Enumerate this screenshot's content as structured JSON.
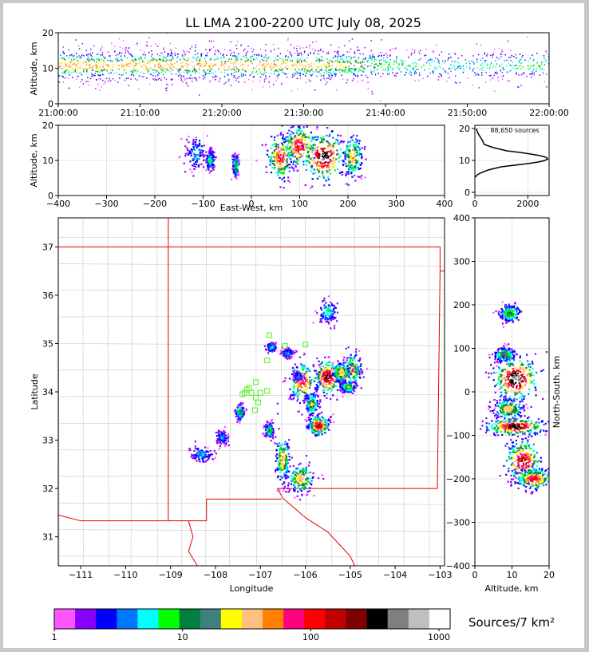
{
  "title": "LL LMA 2100-2200 UTC July 08, 2025",
  "colorbar": {
    "label": "Sources/7 km²",
    "tick_labels": [
      "1",
      "10",
      "100",
      "1000"
    ],
    "colors": [
      "#ff55ff",
      "#8800ff",
      "#0000ff",
      "#0077ff",
      "#00ffff",
      "#00ff00",
      "#007f3f",
      "#3f7f7f",
      "#ffff00",
      "#ffbf7f",
      "#ff7f00",
      "#ff007f",
      "#ff0000",
      "#bf0000",
      "#7f0000",
      "#000000",
      "#7f7f7f",
      "#bfbfbf",
      "#ffffff"
    ]
  },
  "chart_data": [
    {
      "id": "time-altitude",
      "type": "heatmap",
      "xlabel": "",
      "ylabel": "Altitude, km",
      "x_tick_labels": [
        "21:00:00",
        "21:10:00",
        "21:20:00",
        "21:30:00",
        "21:40:00",
        "21:50:00",
        "22:00:00"
      ],
      "xlim": [
        0,
        60
      ],
      "ylim": [
        0,
        20
      ],
      "y_ticks": [
        0,
        10,
        20
      ],
      "core_altitude_km": [
        8,
        14
      ],
      "activity_by_time": [
        [
          0,
          1.0
        ],
        [
          10,
          1.0
        ],
        [
          20,
          1.0
        ],
        [
          30,
          0.95
        ],
        [
          36,
          0.8
        ],
        [
          40,
          0.55
        ],
        [
          45,
          0.45
        ],
        [
          50,
          0.4
        ],
        [
          55,
          0.45
        ],
        [
          60,
          0.55
        ]
      ]
    },
    {
      "id": "eastwest-altitude",
      "type": "heatmap",
      "xlabel": "East-West, km",
      "ylabel": "Altitude, km",
      "xlim": [
        -400,
        400
      ],
      "ylim": [
        0,
        20
      ],
      "x_ticks": [
        -400,
        -300,
        -200,
        -100,
        0,
        100,
        200,
        300,
        400
      ],
      "y_ticks": [
        0,
        10,
        20
      ],
      "clusters": [
        {
          "x": -115,
          "z": 12,
          "sx": 10,
          "sz": 2.5,
          "level": 3
        },
        {
          "x": -85,
          "z": 10,
          "sx": 5,
          "sz": 1.5,
          "level": 4
        },
        {
          "x": -32,
          "z": 8.5,
          "sx": 3,
          "sz": 1.5,
          "level": 7
        },
        {
          "x": 60,
          "z": 11,
          "sx": 14,
          "sz": 3.5,
          "level": 11
        },
        {
          "x": 100,
          "z": 14,
          "sx": 18,
          "sz": 3.0,
          "level": 12
        },
        {
          "x": 150,
          "z": 11,
          "sx": 22,
          "sz": 3.5,
          "level": 15
        },
        {
          "x": 210,
          "z": 11,
          "sx": 10,
          "sz": 3.0,
          "level": 9
        }
      ]
    },
    {
      "id": "altitude-histogram",
      "type": "line",
      "annotation": "88,650 sources",
      "xlim": [
        0,
        2800
      ],
      "ylim": [
        -1,
        21
      ],
      "x_ticks": [
        0,
        2000
      ],
      "y_ticks": [
        0,
        10,
        20
      ],
      "altitude_km": [
        4.7,
        5.5,
        6,
        7,
        8,
        8.5,
        9,
        9.5,
        10,
        10.5,
        11,
        11.5,
        12,
        12.5,
        13,
        14,
        15,
        16,
        17,
        18,
        19,
        20
      ],
      "counts": [
        0,
        100,
        200,
        500,
        1000,
        1500,
        2000,
        2400,
        2650,
        2750,
        2680,
        2450,
        2100,
        1700,
        1200,
        700,
        350,
        300,
        230,
        150,
        90,
        60
      ]
    },
    {
      "id": "plan-view",
      "type": "heatmap",
      "xlabel": "Longitude",
      "ylabel": "Latitude",
      "xlim": [
        -111.5,
        -102.9
      ],
      "ylim": [
        30.4,
        37.6
      ],
      "x_ticks": [
        -111,
        -110,
        -109,
        -108,
        -107,
        -106,
        -105,
        -104,
        -103
      ],
      "y_ticks": [
        31,
        32,
        33,
        34,
        35,
        36,
        37
      ],
      "clusters": [
        {
          "lon": -105.5,
          "lat": 35.65,
          "slon": 0.1,
          "slat": 0.12,
          "level": 4
        },
        {
          "lon": -104.95,
          "lat": 34.45,
          "slon": 0.1,
          "slat": 0.18,
          "level": 8
        },
        {
          "lon": -105.5,
          "lat": 34.3,
          "slon": 0.16,
          "slat": 0.18,
          "level": 14
        },
        {
          "lon": -105.2,
          "lat": 34.4,
          "slon": 0.1,
          "slat": 0.1,
          "level": 9
        },
        {
          "lon": -106.05,
          "lat": 34.2,
          "slon": 0.16,
          "slat": 0.2,
          "level": 11
        },
        {
          "lon": -105.85,
          "lat": 33.75,
          "slon": 0.08,
          "slat": 0.12,
          "level": 7
        },
        {
          "lon": -105.7,
          "lat": 33.3,
          "slon": 0.12,
          "slat": 0.1,
          "level": 13
        },
        {
          "lon": -105.05,
          "lat": 34.1,
          "slon": 0.08,
          "slat": 0.06,
          "level": 7
        },
        {
          "lon": -106.5,
          "lat": 32.6,
          "slon": 0.08,
          "slat": 0.25,
          "level": 9
        },
        {
          "lon": -106.1,
          "lat": 32.2,
          "slon": 0.15,
          "slat": 0.15,
          "level": 9
        },
        {
          "lon": -106.8,
          "lat": 33.2,
          "slon": 0.05,
          "slat": 0.08,
          "level": 6
        },
        {
          "lon": -106.4,
          "lat": 34.8,
          "slon": 0.07,
          "slat": 0.05,
          "level": 3
        },
        {
          "lon": -106.75,
          "lat": 34.92,
          "slon": 0.05,
          "slat": 0.05,
          "level": 4
        },
        {
          "lon": -107.45,
          "lat": 33.58,
          "slon": 0.05,
          "slat": 0.08,
          "level": 6
        },
        {
          "lon": -107.85,
          "lat": 33.05,
          "slon": 0.07,
          "slat": 0.07,
          "level": 3
        },
        {
          "lon": -108.3,
          "lat": 32.7,
          "slon": 0.12,
          "slat": 0.08,
          "level": 3
        },
        {
          "lon": -106.15,
          "lat": 34.32,
          "slon": 0.05,
          "slat": 0.05,
          "level": 3
        }
      ],
      "stations": [
        {
          "lon": -106.8,
          "lat": 35.17
        },
        {
          "lon": -106.45,
          "lat": 34.95
        },
        {
          "lon": -106.0,
          "lat": 34.98
        },
        {
          "lon": -106.85,
          "lat": 34.65
        },
        {
          "lon": -107.1,
          "lat": 34.2
        },
        {
          "lon": -107.25,
          "lat": 34.08
        },
        {
          "lon": -107.35,
          "lat": 33.98
        },
        {
          "lon": -107.2,
          "lat": 33.98
        },
        {
          "lon": -107.0,
          "lat": 33.98
        },
        {
          "lon": -106.85,
          "lat": 34.02
        },
        {
          "lon": -107.1,
          "lat": 33.88
        },
        {
          "lon": -107.05,
          "lat": 33.78
        },
        {
          "lon": -107.12,
          "lat": 33.62
        },
        {
          "lon": -107.4,
          "lat": 33.95
        },
        {
          "lon": -107.3,
          "lat": 34.05
        }
      ]
    },
    {
      "id": "altitude-northsouth",
      "type": "heatmap",
      "xlabel": "Altitude, km",
      "ylabel": "North-South, km",
      "xlim": [
        0,
        20
      ],
      "ylim": [
        -400,
        400
      ],
      "x_ticks": [
        0,
        10,
        20
      ],
      "y_ticks": [
        -400,
        -300,
        -200,
        -100,
        0,
        100,
        200,
        300,
        400
      ],
      "clusters": [
        {
          "z": 9.5,
          "y": 180,
          "sz": 1.5,
          "sy": 10,
          "level": 6
        },
        {
          "z": 8,
          "y": 85,
          "sz": 1.5,
          "sy": 8,
          "level": 7
        },
        {
          "z": 11,
          "y": 30,
          "sz": 3.0,
          "sy": 25,
          "level": 16
        },
        {
          "z": 9,
          "y": -40,
          "sz": 2.0,
          "sy": 12,
          "level": 9
        },
        {
          "z": 11,
          "y": -80,
          "sz": 4.0,
          "sy": 10,
          "level": 15
        },
        {
          "z": 13,
          "y": -160,
          "sz": 2.5,
          "sy": 25,
          "level": 13
        },
        {
          "z": 16,
          "y": -200,
          "sz": 2.5,
          "sy": 12,
          "level": 12
        }
      ]
    }
  ]
}
